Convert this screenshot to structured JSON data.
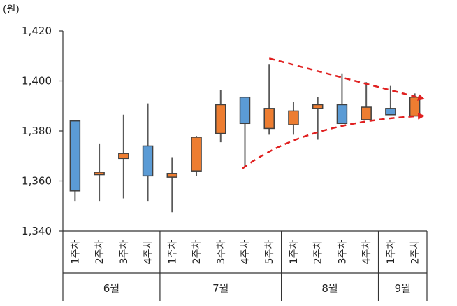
{
  "chart_data": {
    "type": "candlestick",
    "unit": "(원)",
    "ylim": [
      1340,
      1420
    ],
    "yticks": [
      1340,
      1360,
      1380,
      1400,
      1420
    ],
    "ytick_labels": [
      "1,340",
      "1,360",
      "1,380",
      "1,400",
      "1,420"
    ],
    "grid": false,
    "colors": {
      "down": "#5B9BD5",
      "up": "#ED7D31",
      "wick": "#595959",
      "trend": "#E02020"
    },
    "groups": [
      {
        "month": "6월",
        "weeks": [
          {
            "label": "1주차",
            "open": 1384,
            "close": 1356,
            "high": 1384,
            "low": 1352
          },
          {
            "label": "2주차",
            "open": 1362.5,
            "close": 1363.5,
            "high": 1375,
            "low": 1352
          },
          {
            "label": "3주차",
            "open": 1369,
            "close": 1371,
            "high": 1386.5,
            "low": 1353
          },
          {
            "label": "4주차",
            "open": 1374,
            "close": 1362,
            "high": 1391,
            "low": 1352
          }
        ]
      },
      {
        "month": "7월",
        "weeks": [
          {
            "label": "1주차",
            "open": 1361.5,
            "close": 1363,
            "high": 1369.5,
            "low": 1347.5
          },
          {
            "label": "2주차",
            "open": 1364,
            "close": 1377.5,
            "high": 1378,
            "low": 1362
          },
          {
            "label": "3주차",
            "open": 1379,
            "close": 1390.5,
            "high": 1396.5,
            "low": 1375.5
          },
          {
            "label": "4주차",
            "open": 1393.5,
            "close": 1383,
            "high": 1393.5,
            "low": 1365.5
          },
          {
            "label": "5주차",
            "open": 1381,
            "close": 1389,
            "high": 1406.5,
            "low": 1378.5
          }
        ]
      },
      {
        "month": "8월",
        "weeks": [
          {
            "label": "1주차",
            "open": 1382.5,
            "close": 1388,
            "high": 1391.5,
            "low": 1378.5
          },
          {
            "label": "2주차",
            "open": 1389,
            "close": 1390.5,
            "high": 1393.5,
            "low": 1376.5
          },
          {
            "label": "3주차",
            "open": 1390.5,
            "close": 1383,
            "high": 1403,
            "low": 1383
          },
          {
            "label": "4주차",
            "open": 1384.5,
            "close": 1389.5,
            "high": 1399.5,
            "low": 1384.5
          }
        ]
      },
      {
        "month": "9월",
        "weeks": [
          {
            "label": "1주차",
            "open": 1389,
            "close": 1386.5,
            "high": 1398,
            "low": 1386.5
          },
          {
            "label": "2주차",
            "open": 1386,
            "close": 1393.5,
            "high": 1395,
            "low": 1386
          }
        ]
      }
    ],
    "annotations": [
      {
        "type": "dashed-arrow",
        "description": "upper trend line",
        "from": {
          "x_index": 8.0,
          "y": 1409
        },
        "to": {
          "x_index": 14.3,
          "y": 1393
        }
      },
      {
        "type": "dashed-arrow",
        "description": "lower trend line",
        "from": {
          "x_index": 6.9,
          "y": 1365
        },
        "to": {
          "x_index": 14.3,
          "y": 1386
        }
      }
    ]
  }
}
